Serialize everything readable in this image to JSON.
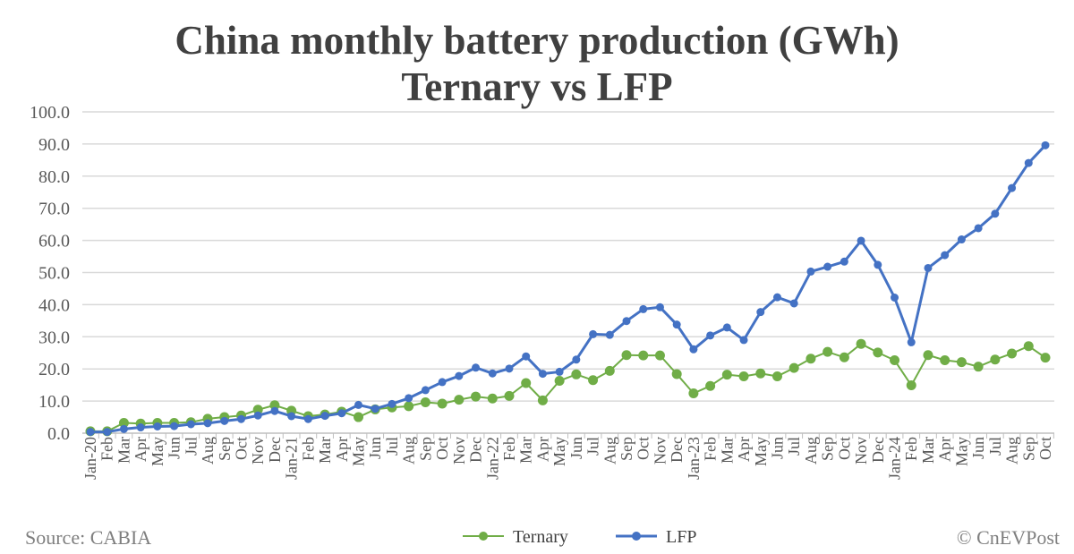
{
  "chart_data": {
    "type": "line",
    "title": [
      "China monthly battery production (GWh)",
      "Ternary vs LFP"
    ],
    "xlabel": "",
    "ylabel": "",
    "ylim": [
      0,
      100
    ],
    "yticks": [
      "0.0",
      "10.0",
      "20.0",
      "30.0",
      "40.0",
      "50.0",
      "60.0",
      "70.0",
      "80.0",
      "90.0",
      "100.0"
    ],
    "grid": true,
    "legend_position": "bottom",
    "categories": [
      "Jan-20",
      "Feb",
      "Mar",
      "Apr",
      "May",
      "Jun",
      "Jul",
      "Aug",
      "Sep",
      "Oct",
      "Nov",
      "Dec",
      "Jan-21",
      "Feb",
      "Mar",
      "Apr",
      "May",
      "Jun",
      "Jul",
      "Aug",
      "Sep",
      "Oct",
      "Nov",
      "Dec",
      "Jan-22",
      "Feb",
      "Mar",
      "Apr",
      "May",
      "Jun",
      "Jul",
      "Aug",
      "Sep",
      "Oct",
      "Nov",
      "Dec",
      "Jan-23",
      "Feb",
      "Mar",
      "Apr",
      "May",
      "Jun",
      "Jul",
      "Aug",
      "Sep",
      "Oct",
      "Nov",
      "Dec",
      "Jan-24",
      "Feb",
      "Mar",
      "Apr",
      "May",
      "Jun",
      "Jul",
      "Aug",
      "Sep",
      "Oct"
    ],
    "series": [
      {
        "name": "Ternary",
        "color": "#70AD47",
        "values": [
          0.6,
          0.6,
          3.2,
          3.0,
          3.2,
          3.2,
          3.4,
          4.5,
          5.0,
          5.5,
          7.3,
          8.7,
          7.0,
          5.3,
          5.8,
          6.7,
          5.0,
          7.4,
          8.0,
          8.4,
          9.6,
          9.2,
          10.4,
          11.4,
          10.8,
          11.6,
          15.6,
          10.2,
          16.3,
          18.3,
          16.5,
          19.4,
          24.3,
          24.2,
          24.2,
          18.4,
          12.4,
          14.7,
          18.2,
          17.7,
          18.6,
          17.7,
          20.3,
          23.2,
          25.3,
          23.6,
          27.8,
          25.1,
          22.7,
          14.9,
          24.3,
          22.7,
          22.1,
          20.7,
          22.9,
          24.8,
          27.1,
          23.5
        ]
      },
      {
        "name": "LFP",
        "color": "#4472C4",
        "values": [
          0.4,
          0.4,
          1.3,
          1.8,
          2.1,
          2.2,
          2.8,
          3.1,
          3.8,
          4.4,
          5.5,
          6.9,
          5.3,
          4.4,
          5.4,
          6.2,
          8.8,
          7.6,
          9.1,
          10.9,
          13.4,
          15.9,
          17.8,
          20.4,
          18.6,
          20.1,
          23.9,
          18.5,
          19.1,
          22.9,
          30.8,
          30.6,
          34.9,
          38.6,
          39.2,
          33.8,
          26.1,
          30.4,
          32.9,
          29.0,
          37.7,
          42.3,
          40.4,
          50.3,
          51.8,
          53.4,
          59.9,
          52.4,
          42.2,
          28.3,
          51.4,
          55.4,
          60.3,
          63.8,
          68.3,
          76.3,
          84.1,
          89.6
        ]
      }
    ]
  },
  "footer": {
    "source": "Source: CABIA",
    "credit": "© CnEVPost"
  }
}
